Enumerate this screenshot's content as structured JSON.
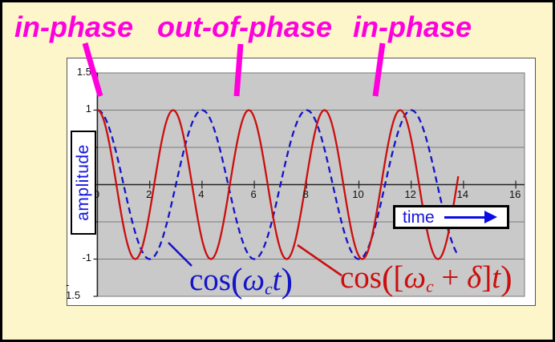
{
  "frame": {
    "background": "#FCF6CA",
    "border_color": "#000000"
  },
  "phase_labels": {
    "color": "#FF00DD",
    "items": [
      {
        "text": "in-phase"
      },
      {
        "text": "out-of-phase"
      },
      {
        "text": "in-phase"
      }
    ]
  },
  "axis_labels": {
    "ylabel": "amplitude",
    "xlabel": "time",
    "label_color": "#1414E0",
    "y_top": "1.5",
    "y_one": "1",
    "y_minus_one": "-1",
    "y_bottom_line1": "-",
    "y_bottom_line2": "1.5"
  },
  "formulas": {
    "blue": {
      "color": "#1414C8",
      "cos": "cos",
      "open_paren": "(",
      "omega": "ω",
      "sub": "c",
      "arg_t": "t",
      "close_paren": ")"
    },
    "red": {
      "color": "#CC0E0E",
      "cos": "cos",
      "open_paren": "(",
      "open_bracket": "[",
      "omega": "ω",
      "sub": "c",
      "plus": " + ",
      "delta": "δ",
      "close_bracket": "]",
      "arg_t": "t",
      "close_paren": ")"
    }
  },
  "chart_data": {
    "type": "line",
    "title": "",
    "xlabel": "time",
    "ylabel": "amplitude",
    "xlim": [
      0,
      16.4
    ],
    "ylim": [
      -1.5,
      1.5
    ],
    "grid": true,
    "legend_position": "none",
    "x_ticks": [
      0,
      2,
      4,
      6,
      8,
      10,
      12,
      14,
      16
    ],
    "y_gridlines": [
      1.5,
      1,
      0.5,
      0,
      -0.5,
      -1,
      -1.5
    ],
    "y_tick_labels_visible": [
      "1.5",
      "1",
      "-1",
      "-1.5"
    ],
    "colors": {
      "plot_bg": "#C9C9C9",
      "grid": "#7A7A7A",
      "axis": "#222222"
    },
    "series": [
      {
        "name": "cos(ωct)",
        "description": "carrier cosine cos(ωc·t), period ≈ 4 time units",
        "color": "#1414C8",
        "line_style": "dashed",
        "amplitude": 1,
        "omega": 1.5708,
        "phase": 0,
        "t_start": 0,
        "t_end": 13.8
      },
      {
        "name": "cos([ωc+δ]t)",
        "description": "higher-frequency cosine cos((ωc+δ)·t), δ ≈ 0.6, period ≈ 2.9 time units",
        "color": "#CC0E0E",
        "line_style": "solid",
        "amplitude": 1,
        "omega": 2.1708,
        "phase": 0,
        "t_start": 0,
        "t_end": 13.8
      }
    ],
    "annotations": [
      {
        "text": "in-phase",
        "t": 0
      },
      {
        "text": "out-of-phase",
        "t": 5.2
      },
      {
        "text": "in-phase",
        "t": 10.5
      }
    ]
  }
}
